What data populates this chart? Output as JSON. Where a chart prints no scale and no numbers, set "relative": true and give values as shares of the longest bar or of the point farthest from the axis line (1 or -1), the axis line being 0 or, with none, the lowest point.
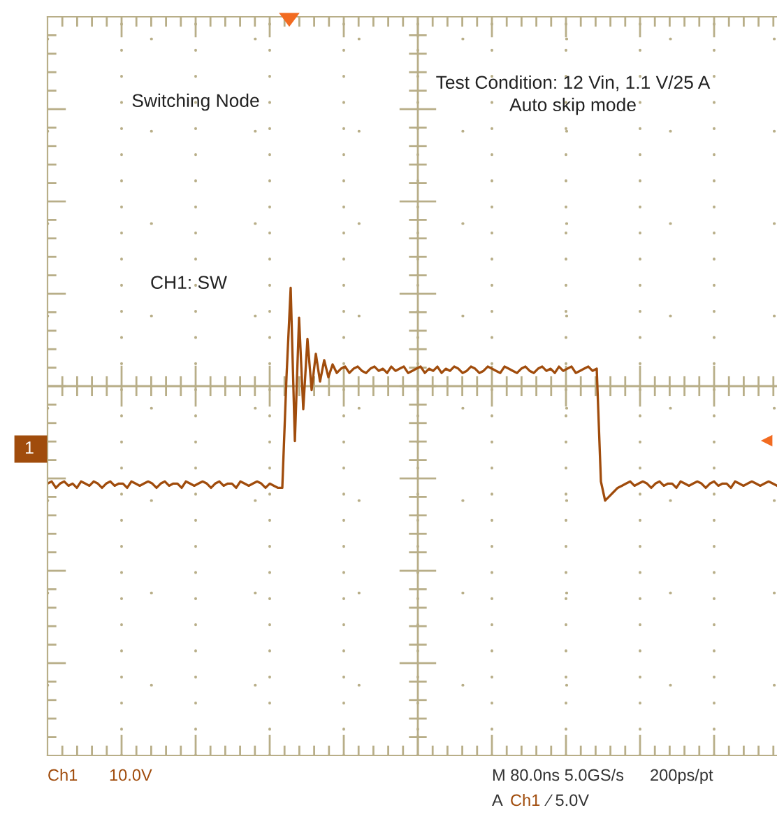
{
  "chart_data": {
    "type": "line",
    "relative": true,
    "grid": true,
    "categories": [
      null,
      null,
      null,
      null,
      null,
      null,
      null,
      null,
      null,
      null,
      null,
      null,
      null,
      null,
      null,
      null,
      null,
      null,
      null,
      null,
      null,
      null,
      null,
      null,
      null,
      null,
      null,
      null,
      null,
      null,
      null,
      null,
      null,
      null,
      null,
      null,
      null,
      null,
      null,
      null,
      null,
      null,
      null,
      null,
      null,
      null,
      null,
      null,
      null,
      null,
      null,
      null,
      null,
      null,
      null,
      null,
      null,
      null,
      null,
      null,
      null,
      null,
      null,
      null,
      null,
      null,
      null,
      null,
      null,
      null,
      null,
      null,
      null,
      null,
      null,
      null,
      null,
      null,
      null,
      null,
      null,
      null,
      null,
      null,
      null,
      null,
      null,
      null,
      null,
      null,
      null,
      null,
      null,
      null,
      null,
      null,
      null,
      null,
      null,
      null,
      null,
      null,
      null,
      null,
      null,
      null,
      null,
      null,
      null,
      null,
      null,
      null,
      null,
      null,
      null,
      null,
      null,
      null,
      null,
      null,
      null,
      null,
      null,
      null,
      null,
      null,
      null,
      null,
      null,
      null,
      null,
      null,
      null,
      null,
      null,
      null,
      null,
      null,
      null,
      null,
      null,
      null,
      null,
      null,
      null,
      null,
      null,
      null,
      null,
      null,
      null,
      null,
      null,
      null,
      null,
      null,
      null,
      null,
      null,
      null,
      null,
      null,
      null,
      null,
      null,
      null,
      null,
      null,
      null,
      null,
      null,
      null,
      null,
      null,
      null
    ],
    "series": [
      {
        "color": "#a04c0c",
        "values": [
          0.08,
          0.09,
          0.06,
          0.08,
          0.09,
          0.07,
          0.08,
          0.06,
          0.09,
          0.08,
          0.07,
          0.09,
          0.08,
          0.06,
          0.08,
          0.09,
          0.07,
          0.08,
          0.08,
          0.06,
          0.09,
          0.08,
          0.07,
          0.08,
          0.09,
          0.08,
          0.06,
          0.08,
          0.09,
          0.07,
          0.08,
          0.08,
          0.06,
          0.09,
          0.08,
          0.07,
          0.08,
          0.09,
          0.08,
          0.06,
          0.08,
          0.09,
          0.07,
          0.08,
          0.08,
          0.06,
          0.09,
          0.08,
          0.07,
          0.08,
          0.09,
          0.08,
          0.06,
          0.08,
          0.07,
          0.06,
          0.06,
          0.58,
          1.0,
          0.28,
          0.86,
          0.43,
          0.76,
          0.52,
          0.69,
          0.56,
          0.66,
          0.58,
          0.64,
          0.6,
          0.62,
          0.63,
          0.6,
          0.62,
          0.63,
          0.61,
          0.6,
          0.62,
          0.63,
          0.61,
          0.62,
          0.6,
          0.63,
          0.61,
          0.62,
          0.63,
          0.6,
          0.61,
          0.62,
          0.63,
          0.6,
          0.62,
          0.61,
          0.63,
          0.6,
          0.62,
          0.61,
          0.63,
          0.62,
          0.6,
          0.61,
          0.63,
          0.62,
          0.6,
          0.61,
          0.63,
          0.62,
          0.61,
          0.6,
          0.63,
          0.62,
          0.61,
          0.6,
          0.62,
          0.63,
          0.61,
          0.6,
          0.62,
          0.63,
          0.61,
          0.62,
          0.6,
          0.63,
          0.61,
          0.62,
          0.63,
          0.6,
          0.61,
          0.62,
          0.63,
          0.61,
          0.62,
          0.09,
          0,
          0.02,
          0.04,
          0.06,
          0.07,
          0.08,
          0.09,
          0.07,
          0.08,
          0.09,
          0.08,
          0.06,
          0.08,
          0.09,
          0.07,
          0.08,
          0.08,
          0.06,
          0.09,
          0.08,
          0.07,
          0.08,
          0.09,
          0.08,
          0.06,
          0.08,
          0.09,
          0.07,
          0.08,
          0.08,
          0.06,
          0.09,
          0.08,
          0.07,
          0.08,
          0.09,
          0.08,
          0.07,
          0.08,
          0.09,
          0.08,
          0.07
        ]
      }
    ],
    "annotations": [
      "Switching Node",
      "Test Condition: 12 Vin, 1.1 V/25 A",
      "Auto skip mode",
      "CH1: SW",
      "Ch1",
      "10.0V",
      "M 80.0ns 5.0GS/s",
      "200ps/pt",
      "A",
      "Ch1",
      "∕ 5.0V",
      "1"
    ]
  }
}
